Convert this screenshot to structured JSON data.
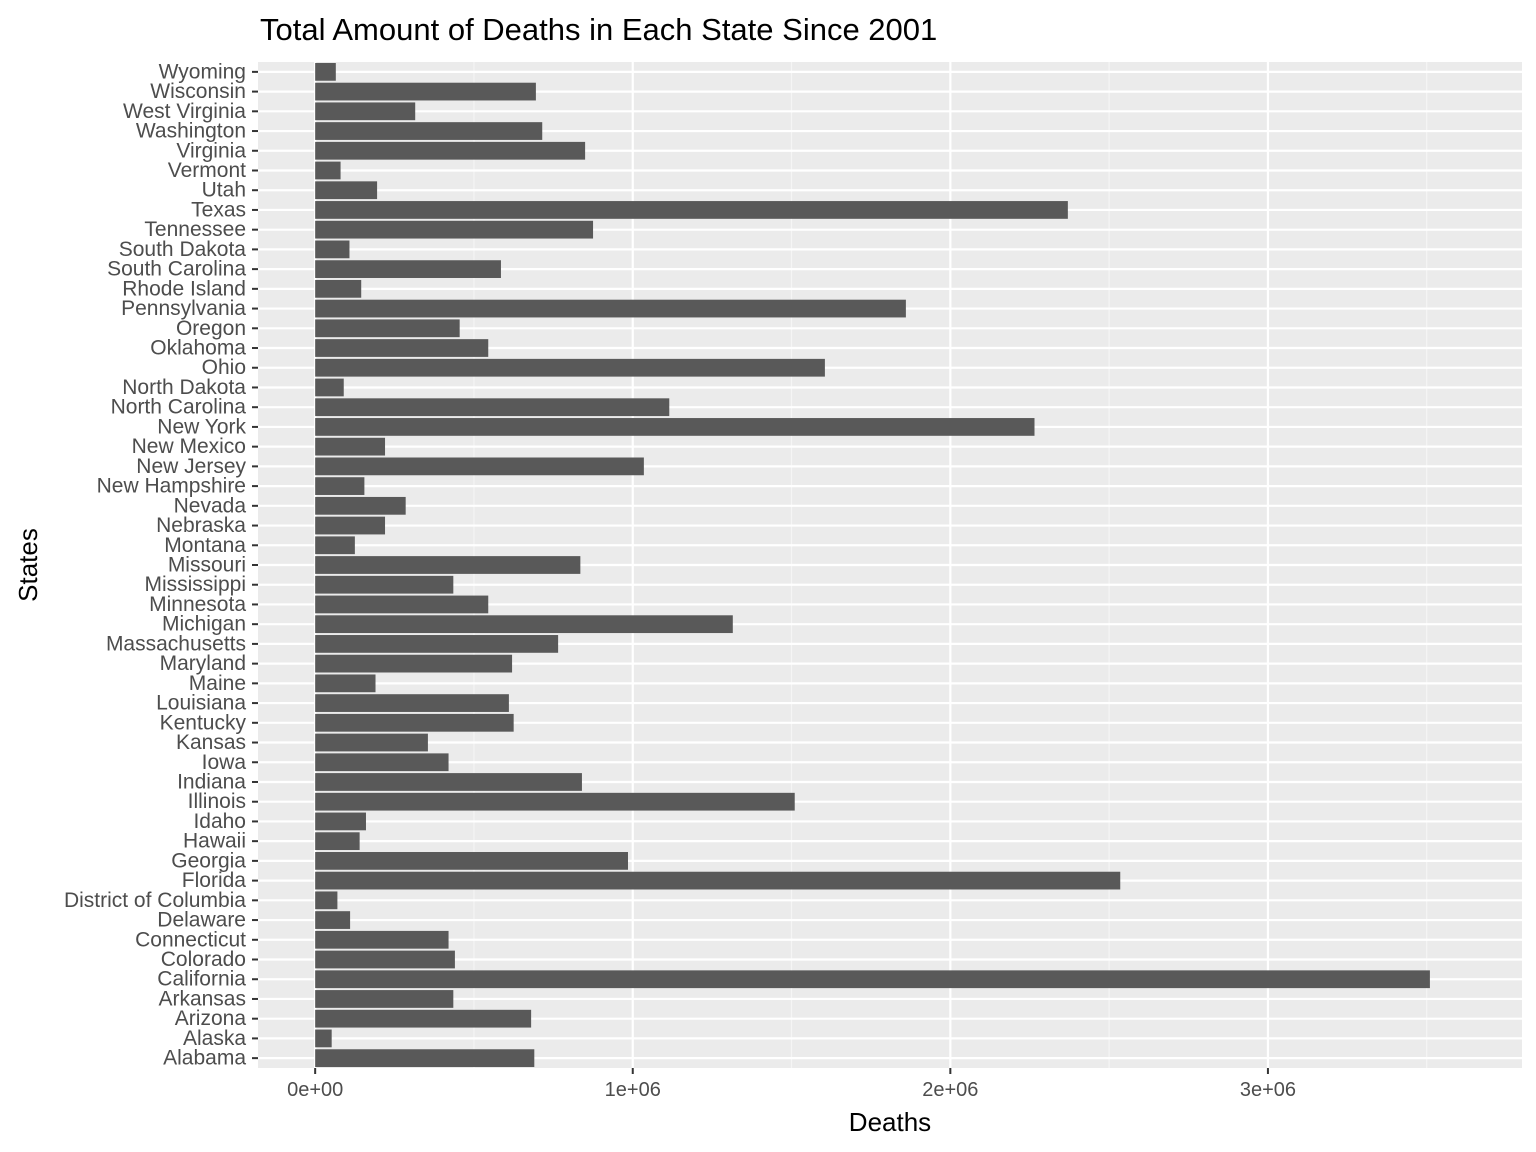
{
  "chart_data": {
    "type": "bar",
    "orientation": "horizontal",
    "title": "Total Amount of Deaths in Each State Since 2001",
    "xlabel": "Deaths",
    "ylabel": "States",
    "xlim": [
      -180000,
      3800000
    ],
    "x_ticks": [
      0,
      1000000,
      2000000,
      3000000
    ],
    "x_tick_labels": [
      "0e+00",
      "1e+06",
      "2e+06",
      "3e+06"
    ],
    "grid": true,
    "legend": "none",
    "colors": {
      "panel_background": "#ebebeb",
      "grid_major": "#ffffff",
      "grid_minor": "#f5f5f5",
      "bar": "#595959",
      "tick_text": "#4d4d4d",
      "tick_mark": "#333333"
    },
    "categories": [
      "Alabama",
      "Alaska",
      "Arizona",
      "Arkansas",
      "California",
      "Colorado",
      "Connecticut",
      "Delaware",
      "District of Columbia",
      "Florida",
      "Georgia",
      "Hawaii",
      "Idaho",
      "Illinois",
      "Indiana",
      "Iowa",
      "Kansas",
      "Kentucky",
      "Louisiana",
      "Maine",
      "Maryland",
      "Massachusetts",
      "Michigan",
      "Minnesota",
      "Mississippi",
      "Missouri",
      "Montana",
      "Nebraska",
      "Nevada",
      "New Hampshire",
      "New Jersey",
      "New Mexico",
      "New York",
      "North Carolina",
      "North Dakota",
      "Ohio",
      "Oklahoma",
      "Oregon",
      "Pennsylvania",
      "Rhode Island",
      "South Carolina",
      "South Dakota",
      "Tennessee",
      "Texas",
      "Utah",
      "Vermont",
      "Virginia",
      "Washington",
      "West Virginia",
      "Wisconsin",
      "Wyoming"
    ],
    "values": [
      690000,
      52000,
      680000,
      435000,
      3510000,
      440000,
      420000,
      110000,
      70000,
      2535000,
      985000,
      140000,
      160000,
      1510000,
      840000,
      420000,
      355000,
      625000,
      610000,
      190000,
      620000,
      765000,
      1315000,
      545000,
      435000,
      835000,
      125000,
      220000,
      285000,
      155000,
      1035000,
      220000,
      2265000,
      1115000,
      90000,
      1605000,
      545000,
      455000,
      1860000,
      145000,
      585000,
      108000,
      875000,
      2370000,
      195000,
      80000,
      850000,
      715000,
      315000,
      695000,
      65000
    ]
  }
}
